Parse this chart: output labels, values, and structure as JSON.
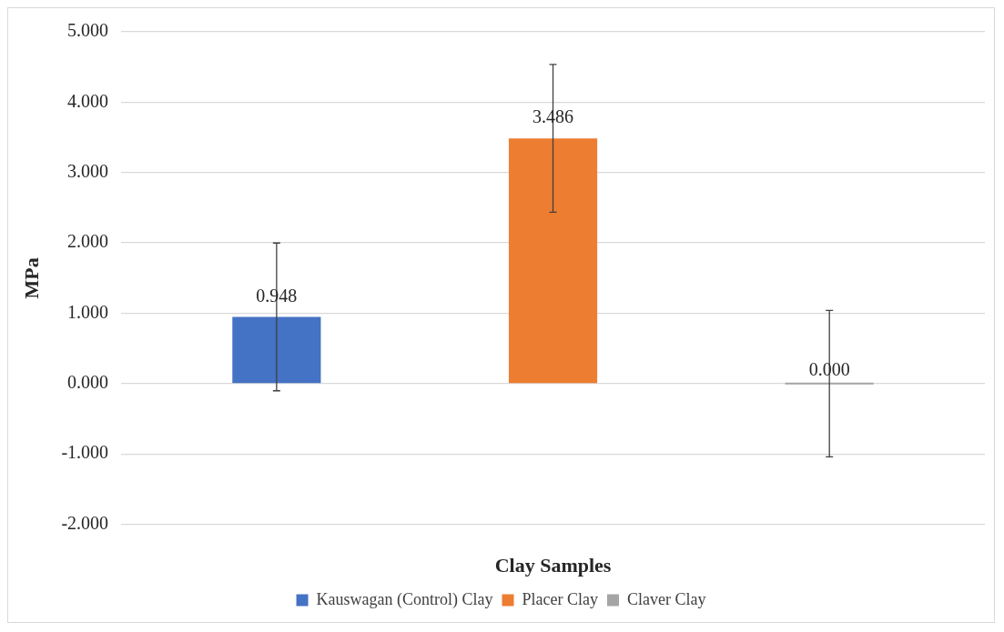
{
  "chart_data": {
    "type": "bar",
    "xlabel": "Clay Samples",
    "ylabel": "MPa",
    "categories": [
      null
    ],
    "series": [
      {
        "name": "Kauswagan (Control) Clay",
        "color": "#4472c4",
        "values": [
          0.948
        ],
        "errors": [
          1.05
        ],
        "value_labels": [
          "0.948"
        ]
      },
      {
        "name": "Placer Clay",
        "color": "#ed7d31",
        "values": [
          3.486
        ],
        "errors": [
          1.05
        ],
        "value_labels": [
          "3.486"
        ]
      },
      {
        "name": "Claver Clay",
        "color": "#a5a5a5",
        "values": [
          0
        ],
        "errors": [
          1.04
        ],
        "value_labels": [
          "0.000"
        ]
      }
    ],
    "ylim": [
      -2,
      5
    ],
    "yticks": [
      {
        "value": -2,
        "label": "-2.000"
      },
      {
        "value": -1,
        "label": "-1.000"
      },
      {
        "value": 0,
        "label": "0.000"
      },
      {
        "value": 1,
        "label": "1.000"
      },
      {
        "value": 2,
        "label": "2.000"
      },
      {
        "value": 3,
        "label": "3.000"
      },
      {
        "value": 4,
        "label": "4.000"
      },
      {
        "value": 5,
        "label": "5.000"
      }
    ],
    "grid": "y",
    "legend": "bottom"
  }
}
